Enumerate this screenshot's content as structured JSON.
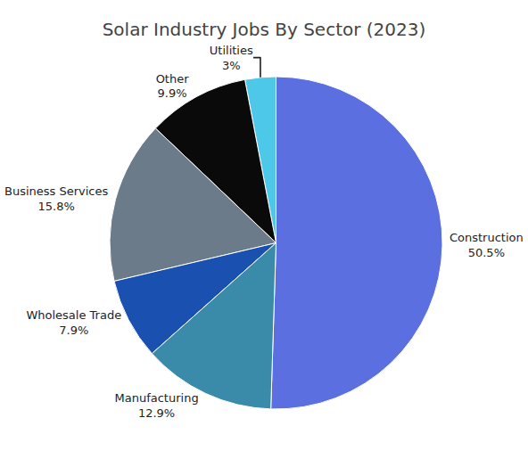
{
  "chart_data": {
    "type": "pie",
    "title": "Solar Industry Jobs By Sector (2023)",
    "categories": [
      "Construction",
      "Utilities",
      "Other",
      "Business Services",
      "Wholesale Trade",
      "Manufacturing"
    ],
    "values": [
      50.5,
      3.0,
      9.9,
      15.8,
      7.9,
      12.9
    ],
    "value_labels": [
      "50.5%",
      "3%",
      "9.9%",
      "15.8%",
      "7.9%",
      "12.9%"
    ],
    "colors": [
      "#5b6fe0",
      "#4dc8e8",
      "#0a0a0a",
      "#6b7b8a",
      "#1a50b0",
      "#3a8aaa"
    ],
    "data_labels": true
  }
}
